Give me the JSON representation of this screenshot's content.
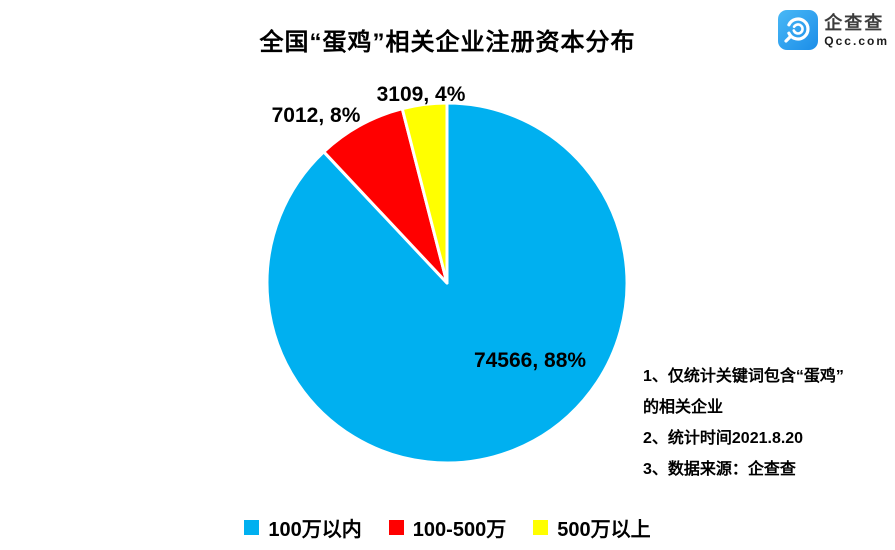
{
  "title": "全国“蛋鸡”相关企业注册资本分布",
  "logo": {
    "name": "企查查",
    "domain": "Qcc.com",
    "brand_color": "#2B9EF0"
  },
  "chart_data": {
    "type": "pie",
    "title": "全国“蛋鸡”相关企业注册资本分布",
    "start_angle_deg": 0,
    "direction": "clockwise",
    "legend_position": "bottom",
    "slices": [
      {
        "label": "100万以内",
        "value": 74566,
        "pct": 88,
        "color": "#00B0F0",
        "data_label": "74566, 88%"
      },
      {
        "label": "100-500万",
        "value": 7012,
        "pct": 8,
        "color": "#FF0000",
        "data_label": "7012, 8%"
      },
      {
        "label": "500万以上",
        "value": 3109,
        "pct": 4,
        "color": "#FFFF00",
        "data_label": "3109, 4%"
      }
    ]
  },
  "notes": {
    "lines": [
      "1、仅统计关键词包含“蛋鸡”",
      "的相关企业",
      "2、统计时间2021.8.20",
      "3、数据来源：企查查"
    ]
  }
}
